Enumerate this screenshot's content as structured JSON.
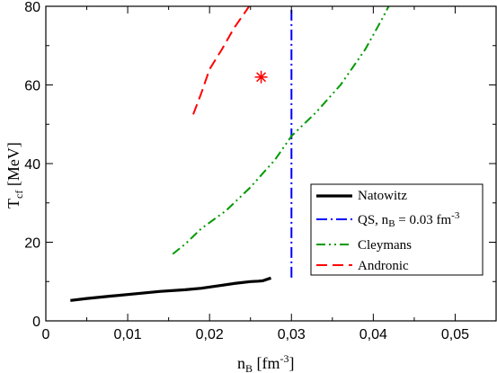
{
  "chart_data": {
    "type": "line",
    "xlabel_main": "n",
    "xlabel_sub": "B",
    "xlabel_unit_pre": " [fm",
    "xlabel_unit_sup": "-3",
    "xlabel_unit_post": "]",
    "ylabel_main": "T",
    "ylabel_sub": "cf",
    "ylabel_unit": " [MeV]",
    "xlim": [
      0,
      0.055
    ],
    "ylim": [
      0,
      80
    ],
    "xticks": [
      0,
      0.01,
      0.02,
      0.03,
      0.04,
      0.05
    ],
    "xtick_labels": [
      "0",
      "0,01",
      "0,02",
      "0,03",
      "0,04",
      "0,05"
    ],
    "yticks": [
      0,
      20,
      40,
      60,
      80
    ],
    "ytick_labels": [
      "0",
      "20",
      "40",
      "60",
      "80"
    ],
    "legend_position": "lower-right",
    "series": [
      {
        "name": "Natowitz",
        "color": "#000000",
        "style": "solid",
        "width": 3.2,
        "points": [
          [
            0.003,
            5.2
          ],
          [
            0.005,
            5.7
          ],
          [
            0.008,
            6.3
          ],
          [
            0.011,
            6.9
          ],
          [
            0.014,
            7.5
          ],
          [
            0.017,
            7.9
          ],
          [
            0.019,
            8.3
          ],
          [
            0.021,
            8.9
          ],
          [
            0.023,
            9.5
          ],
          [
            0.025,
            10.0
          ],
          [
            0.026,
            10.1
          ],
          [
            0.0265,
            10.2
          ],
          [
            0.0275,
            10.9
          ]
        ]
      },
      {
        "name": "QS, n",
        "name_sub": "B",
        "name_mid": " = 0.03 fm",
        "name_sup": "-3",
        "color": "#0000ff",
        "style": "dashdot",
        "width": 2,
        "points": [
          [
            0.03,
            11
          ],
          [
            0.03,
            80
          ]
        ]
      },
      {
        "name": "Cleymans",
        "color": "#009900",
        "style": "dashdotdot",
        "width": 2,
        "points": [
          [
            0.0155,
            17
          ],
          [
            0.017,
            19.5
          ],
          [
            0.019,
            23.5
          ],
          [
            0.022,
            28
          ],
          [
            0.025,
            34
          ],
          [
            0.028,
            41
          ],
          [
            0.03,
            47
          ],
          [
            0.033,
            53
          ],
          [
            0.036,
            60
          ],
          [
            0.039,
            69
          ],
          [
            0.041,
            76.5
          ],
          [
            0.042,
            80.5
          ]
        ]
      },
      {
        "name": "Andronic",
        "color": "#ff0000",
        "style": "dashed",
        "width": 2,
        "points": [
          [
            0.018,
            52.5
          ],
          [
            0.019,
            58
          ],
          [
            0.02,
            64
          ],
          [
            0.0215,
            69
          ],
          [
            0.023,
            74.5
          ],
          [
            0.0245,
            79
          ],
          [
            0.025,
            80.5
          ]
        ]
      }
    ],
    "marker": {
      "x": 0.0263,
      "y": 62,
      "symbol": "*",
      "color": "#ff0000"
    }
  }
}
